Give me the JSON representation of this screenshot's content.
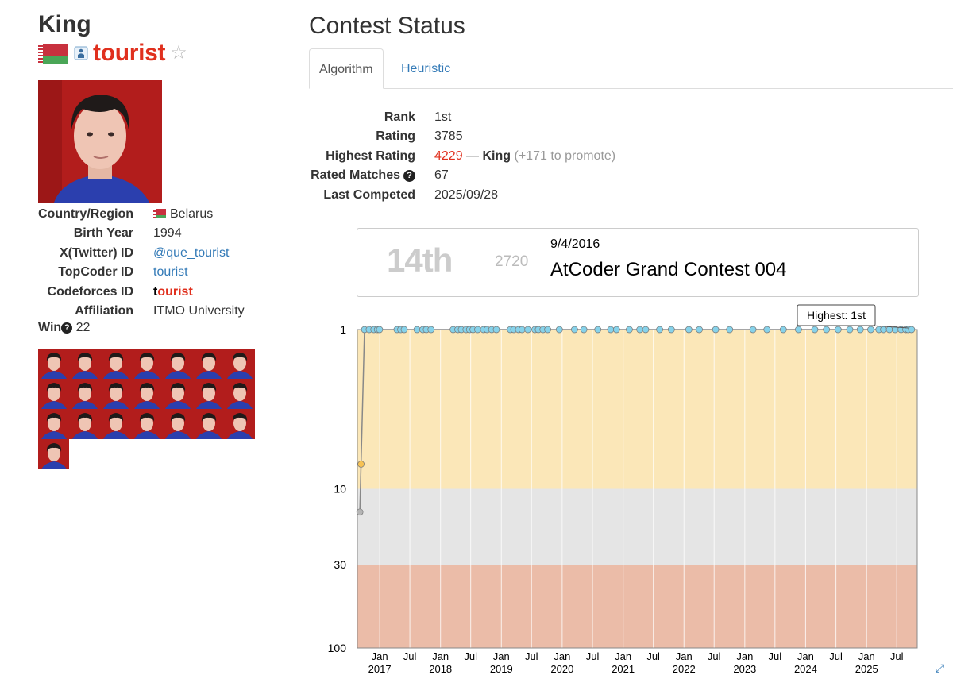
{
  "profile": {
    "rank_title": "King",
    "username": "tourist",
    "username_color": "#e0301e",
    "country_flag": "belarus-flag",
    "info": [
      {
        "label": "Country/Region",
        "value": "Belarus",
        "flag": "belarus-flag"
      },
      {
        "label": "Birth Year",
        "value": "1994"
      },
      {
        "label": "X(Twitter) ID",
        "value": "@que_tourist",
        "link": true
      },
      {
        "label": "TopCoder ID",
        "value": "tourist",
        "link": true
      },
      {
        "label": "Codeforces ID",
        "value": "tourist",
        "first_letter": "t",
        "rest": "ourist"
      },
      {
        "label": "Affiliation",
        "value": "ITMO University"
      }
    ],
    "win_label": "Win",
    "win_count": "22",
    "thumbnail_count": 22
  },
  "contest_status": {
    "title": "Contest Status",
    "tabs": [
      {
        "label": "Algorithm",
        "active": true
      },
      {
        "label": "Heuristic",
        "active": false
      }
    ],
    "stats": {
      "rank_label": "Rank",
      "rank": "1st",
      "rating_label": "Rating",
      "rating": "3785",
      "highest_label": "Highest Rating",
      "highest": "4229",
      "highest_sep": "—",
      "highest_title": "King",
      "promote_note": "(+171 to promote)",
      "matches_label": "Rated Matches",
      "matches": "67",
      "last_label": "Last Competed",
      "last": "2025/09/28"
    }
  },
  "contest_box": {
    "rank": "14th",
    "performance": "2720",
    "date": "9/4/2016",
    "contest_name": "AtCoder Grand Contest 004"
  },
  "chart_data": {
    "type": "scatter",
    "title": "",
    "xlabel": "",
    "ylabel": "",
    "y_scale": "log",
    "y_reversed": true,
    "y_ticks": [
      "1",
      "10",
      "30",
      "100"
    ],
    "ylim": [
      1,
      100
    ],
    "x_range": [
      "2016-08-20",
      "2025-11-01"
    ],
    "x_month_ticks": [
      "Jan",
      "Jul",
      "Jan",
      "Jul",
      "Jan",
      "Jul",
      "Jan",
      "Jul",
      "Jan",
      "Jul",
      "Jan",
      "Jul",
      "Jan",
      "Jul",
      "Jan",
      "Jul",
      "Jan",
      "Jul"
    ],
    "x_year_ticks": [
      "2017",
      "2018",
      "2019",
      "2020",
      "2021",
      "2022",
      "2023",
      "2024",
      "2025"
    ],
    "bands": [
      {
        "from": 1,
        "to": 10,
        "color": "#fbe7b8"
      },
      {
        "from": 10,
        "to": 30,
        "color": "#e5e5e5"
      },
      {
        "from": 30,
        "to": 100,
        "color": "#ebbca8"
      }
    ],
    "tooltip": "Highest: 1st",
    "colors": {
      "first_place": "#86d2ea",
      "top10": "#f7c253",
      "other": "#b5b5b5"
    },
    "points": [
      {
        "date": "2016-09-04",
        "rank": 14
      },
      {
        "date": "2016-09-11",
        "rank": 7
      },
      {
        "date": "2016-10-02",
        "rank": 1
      },
      {
        "date": "2016-10-30",
        "rank": 1
      },
      {
        "date": "2016-11-27",
        "rank": 1
      },
      {
        "date": "2016-12-18",
        "rank": 1
      },
      {
        "date": "2016-12-31",
        "rank": 1
      },
      {
        "date": "2017-04-15",
        "rank": 1
      },
      {
        "date": "2017-05-07",
        "rank": 1
      },
      {
        "date": "2017-05-28",
        "rank": 1
      },
      {
        "date": "2017-08-13",
        "rank": 1
      },
      {
        "date": "2017-09-17",
        "rank": 1
      },
      {
        "date": "2017-10-08",
        "rank": 1
      },
      {
        "date": "2017-11-05",
        "rank": 1
      },
      {
        "date": "2018-03-18",
        "rank": 1
      },
      {
        "date": "2018-04-15",
        "rank": 1
      },
      {
        "date": "2018-05-06",
        "rank": 1
      },
      {
        "date": "2018-06-03",
        "rank": 1
      },
      {
        "date": "2018-06-24",
        "rank": 1
      },
      {
        "date": "2018-07-15",
        "rank": 1
      },
      {
        "date": "2018-08-12",
        "rank": 1
      },
      {
        "date": "2018-09-16",
        "rank": 1
      },
      {
        "date": "2018-10-07",
        "rank": 1
      },
      {
        "date": "2018-11-04",
        "rank": 1
      },
      {
        "date": "2018-12-02",
        "rank": 1
      },
      {
        "date": "2019-02-24",
        "rank": 1
      },
      {
        "date": "2019-03-17",
        "rank": 1
      },
      {
        "date": "2019-04-14",
        "rank": 1
      },
      {
        "date": "2019-05-05",
        "rank": 1
      },
      {
        "date": "2019-06-09",
        "rank": 1
      },
      {
        "date": "2019-07-21",
        "rank": 1
      },
      {
        "date": "2019-08-11",
        "rank": 1
      },
      {
        "date": "2019-09-08",
        "rank": 1
      },
      {
        "date": "2019-10-06",
        "rank": 1
      },
      {
        "date": "2019-12-15",
        "rank": 1
      },
      {
        "date": "2020-03-15",
        "rank": 1
      },
      {
        "date": "2020-05-10",
        "rank": 1
      },
      {
        "date": "2020-08-02",
        "rank": 1
      },
      {
        "date": "2020-10-18",
        "rank": 1
      },
      {
        "date": "2020-11-22",
        "rank": 1
      },
      {
        "date": "2021-02-07",
        "rank": 1
      },
      {
        "date": "2021-04-11",
        "rank": 1
      },
      {
        "date": "2021-05-16",
        "rank": 1
      },
      {
        "date": "2021-08-08",
        "rank": 1
      },
      {
        "date": "2021-10-17",
        "rank": 1
      },
      {
        "date": "2022-01-30",
        "rank": 1
      },
      {
        "date": "2022-04-03",
        "rank": 1
      },
      {
        "date": "2022-07-10",
        "rank": 1
      },
      {
        "date": "2022-10-02",
        "rank": 1
      },
      {
        "date": "2023-02-19",
        "rank": 1
      },
      {
        "date": "2023-05-14",
        "rank": 1
      },
      {
        "date": "2023-08-20",
        "rank": 1
      },
      {
        "date": "2023-11-19",
        "rank": 1
      },
      {
        "date": "2024-02-25",
        "rank": 1
      },
      {
        "date": "2024-05-05",
        "rank": 1
      },
      {
        "date": "2024-07-14",
        "rank": 1
      },
      {
        "date": "2024-09-22",
        "rank": 1
      },
      {
        "date": "2024-11-24",
        "rank": 1
      },
      {
        "date": "2025-01-26",
        "rank": 1
      },
      {
        "date": "2025-03-16",
        "rank": 1
      },
      {
        "date": "2025-04-13",
        "rank": 1
      },
      {
        "date": "2025-05-18",
        "rank": 1
      },
      {
        "date": "2025-06-22",
        "rank": 1
      },
      {
        "date": "2025-07-27",
        "rank": 1
      },
      {
        "date": "2025-08-24",
        "rank": 1
      },
      {
        "date": "2025-09-07",
        "rank": 1
      },
      {
        "date": "2025-09-28",
        "rank": 1
      }
    ]
  }
}
